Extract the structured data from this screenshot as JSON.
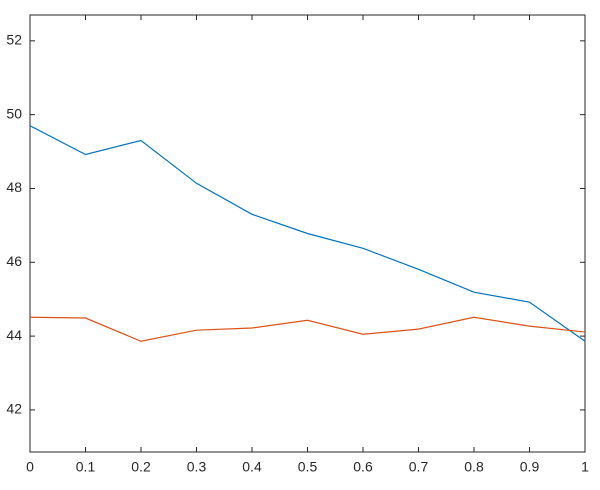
{
  "chart_data": {
    "type": "line",
    "x": [
      0,
      0.1,
      0.2,
      0.3,
      0.4,
      0.5,
      0.6,
      0.7,
      0.8,
      0.9,
      1
    ],
    "series": [
      {
        "color": "#0072BD",
        "values": [
          49.7,
          48.92,
          49.3,
          48.14,
          47.3,
          46.78,
          46.38,
          45.81,
          45.19,
          44.92,
          43.86
        ]
      },
      {
        "color": "#D95319",
        "values": [
          44.51,
          44.49,
          43.86,
          44.16,
          44.22,
          44.43,
          44.05,
          44.19,
          44.51,
          44.27,
          44.11
        ]
      }
    ],
    "xlim": [
      0,
      1
    ],
    "xticks": [
      0,
      0.1,
      0.2,
      0.3,
      0.4,
      0.5,
      0.6,
      0.7,
      0.8,
      0.9,
      1
    ],
    "ylim": [
      40.86,
      52.7
    ],
    "yticks": [
      42,
      44,
      46,
      48,
      50,
      52
    ],
    "grid": false
  }
}
